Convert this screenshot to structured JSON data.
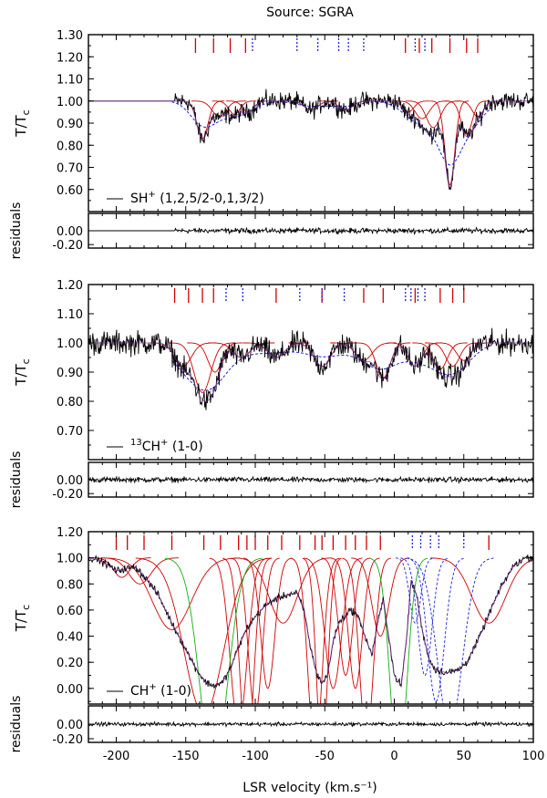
{
  "chart_data": {
    "type": "line",
    "title": "Source: SGRA",
    "xlabel": "LSR velocity (km.s⁻¹)",
    "xlim": [
      -220,
      100
    ],
    "xticks": [
      -200,
      -150,
      -100,
      -50,
      0,
      50,
      100
    ],
    "xtick_labels": [
      "-200",
      "-150",
      "-100",
      "-50",
      "0",
      "50",
      "100"
    ],
    "colors": {
      "data": "#000000",
      "fit": "#d00000",
      "fit_alt": "#2222dd",
      "fit_green": "#10b010"
    },
    "panels": [
      {
        "id": "sh",
        "ylabel": "T/T",
        "ylabel_sub": "c",
        "ylim": [
          0.5,
          1.3
        ],
        "yticks": [
          0.6,
          0.7,
          0.8,
          0.9,
          1.0,
          1.1,
          1.2,
          1.3
        ],
        "ytick_labels": [
          "0.60",
          "0.70",
          "0.80",
          "0.90",
          "1.00",
          "1.10",
          "1.20",
          "1.30"
        ],
        "legend_prefix": "",
        "legend_species": "SH",
        "legend_suffix": " (1,2,5/2-0,1,3/2)",
        "red_markers": [
          -143,
          -130,
          -118,
          -107,
          8,
          18,
          27,
          40,
          52,
          60
        ],
        "blue_markers": [
          -102,
          -70,
          -55,
          -40,
          -33,
          -22,
          15,
          22
        ],
        "components": [
          {
            "v": -138,
            "d": 0.17,
            "w": 4
          },
          {
            "v": -126,
            "d": 0.07,
            "w": 5
          },
          {
            "v": -115,
            "d": 0.06,
            "w": 4
          },
          {
            "v": -105,
            "d": 0.05,
            "w": 4
          },
          {
            "v": -60,
            "d": 0.04,
            "w": 5
          },
          {
            "v": -35,
            "d": 0.04,
            "w": 5
          },
          {
            "v": 10,
            "d": 0.05,
            "w": 4
          },
          {
            "v": 20,
            "d": 0.08,
            "w": 5
          },
          {
            "v": 28,
            "d": 0.12,
            "w": 5
          },
          {
            "v": 40,
            "d": 0.38,
            "w": 3.5
          },
          {
            "v": 52,
            "d": 0.15,
            "w": 4
          },
          {
            "v": 60,
            "d": 0.07,
            "w": 4
          }
        ],
        "data_start": -158,
        "noise": 0.045,
        "residual_ylim": [
          -0.25,
          0.25
        ],
        "residual_yticks": [
          0.0,
          -0.2
        ],
        "residual_ytick_labels": [
          "0.00",
          "-0.20"
        ],
        "residual_label": "residuals"
      },
      {
        "id": "c13h",
        "ylabel": "T/T",
        "ylabel_sub": "c",
        "ylim": [
          0.6,
          1.2
        ],
        "yticks": [
          0.7,
          0.8,
          0.9,
          1.0,
          1.1,
          1.2
        ],
        "ytick_labels": [
          "0.70",
          "0.80",
          "0.90",
          "1.00",
          "1.10",
          "1.20"
        ],
        "legend_prefix": "13",
        "legend_species": "CH",
        "legend_suffix": " (1-0)",
        "red_markers": [
          -158,
          -148,
          -138,
          -130,
          -85,
          -52,
          -22,
          -8,
          15,
          33,
          42,
          50
        ],
        "blue_markers": [
          -121,
          -109,
          -68,
          -52,
          -36,
          8,
          12,
          17,
          22
        ],
        "components": [
          {
            "v": -152,
            "d": 0.08,
            "w": 6
          },
          {
            "v": -138,
            "d": 0.17,
            "w": 6
          },
          {
            "v": -129,
            "d": 0.1,
            "w": 5
          },
          {
            "v": -110,
            "d": 0.05,
            "w": 6
          },
          {
            "v": -85,
            "d": 0.05,
            "w": 6
          },
          {
            "v": -52,
            "d": 0.08,
            "w": 6
          },
          {
            "v": -22,
            "d": 0.06,
            "w": 6
          },
          {
            "v": -8,
            "d": 0.12,
            "w": 5
          },
          {
            "v": 15,
            "d": 0.08,
            "w": 5
          },
          {
            "v": 33,
            "d": 0.09,
            "w": 5
          },
          {
            "v": 42,
            "d": 0.08,
            "w": 5
          },
          {
            "v": 50,
            "d": 0.06,
            "w": 5
          }
        ],
        "data_start": -220,
        "noise": 0.045,
        "residual_ylim": [
          -0.25,
          0.25
        ],
        "residual_yticks": [
          0.0,
          -0.2
        ],
        "residual_ytick_labels": [
          "0.00",
          "-0.20"
        ],
        "residual_label": "residuals"
      },
      {
        "id": "ch",
        "ylabel": "T/T",
        "ylabel_sub": "c",
        "ylim": [
          -0.12,
          1.2
        ],
        "yticks": [
          0.0,
          0.2,
          0.4,
          0.6,
          0.8,
          1.0,
          1.2
        ],
        "ytick_labels": [
          "0.00",
          "0.20",
          "0.40",
          "0.60",
          "0.80",
          "1.00",
          "1.20"
        ],
        "legend_prefix": "",
        "legend_species": "CH",
        "legend_suffix": " (1-0)",
        "red_markers": [
          -200,
          -192,
          -180,
          -160,
          -137,
          -125,
          -112,
          -106,
          -100,
          -91,
          -81,
          -68,
          -57,
          -52,
          -44,
          -35,
          -28,
          -20,
          -10,
          68
        ],
        "blue_markers": [
          13,
          19,
          26,
          32,
          50
        ],
        "profile": [
          [
            -220,
            1.0
          ],
          [
            -212,
            0.98
          ],
          [
            -205,
            0.94
          ],
          [
            -200,
            0.9
          ],
          [
            -192,
            0.92
          ],
          [
            -186,
            0.93
          ],
          [
            -180,
            0.86
          ],
          [
            -170,
            0.72
          ],
          [
            -160,
            0.5
          ],
          [
            -150,
            0.3
          ],
          [
            -142,
            0.14
          ],
          [
            -136,
            0.05
          ],
          [
            -130,
            0.02
          ],
          [
            -124,
            0.04
          ],
          [
            -118,
            0.15
          ],
          [
            -112,
            0.32
          ],
          [
            -106,
            0.46
          ],
          [
            -100,
            0.55
          ],
          [
            -94,
            0.62
          ],
          [
            -88,
            0.67
          ],
          [
            -82,
            0.7
          ],
          [
            -76,
            0.72
          ],
          [
            -70,
            0.73
          ],
          [
            -65,
            0.6
          ],
          [
            -60,
            0.3
          ],
          [
            -56,
            0.12
          ],
          [
            -52,
            0.04
          ],
          [
            -48,
            0.1
          ],
          [
            -44,
            0.36
          ],
          [
            -40,
            0.5
          ],
          [
            -36,
            0.55
          ],
          [
            -32,
            0.6
          ],
          [
            -28,
            0.58
          ],
          [
            -24,
            0.5
          ],
          [
            -20,
            0.36
          ],
          [
            -16,
            0.26
          ],
          [
            -12,
            0.5
          ],
          [
            -8,
            0.68
          ],
          [
            -4,
            0.4
          ],
          [
            0,
            0.1
          ],
          [
            5,
            0.02
          ],
          [
            9,
            0.4
          ],
          [
            12,
            0.82
          ],
          [
            16,
            0.72
          ],
          [
            20,
            0.45
          ],
          [
            25,
            0.22
          ],
          [
            30,
            0.14
          ],
          [
            38,
            0.12
          ],
          [
            46,
            0.14
          ],
          [
            52,
            0.2
          ],
          [
            58,
            0.32
          ],
          [
            64,
            0.46
          ],
          [
            70,
            0.62
          ],
          [
            78,
            0.8
          ],
          [
            86,
            0.94
          ],
          [
            94,
            1.0
          ],
          [
            100,
            1.0
          ]
        ],
        "red_fits": [
          {
            "v": -196,
            "a": 0.15,
            "w": 6
          },
          {
            "v": -183,
            "a": 0.2,
            "w": 8
          },
          {
            "v": -160,
            "a": 0.55,
            "w": 14
          },
          {
            "v": -137,
            "a": 1.2,
            "w": 14
          },
          {
            "v": -112,
            "a": 1.3,
            "w": 6
          },
          {
            "v": -106,
            "a": 1.5,
            "w": 5
          },
          {
            "v": -100,
            "a": 1.2,
            "w": 5
          },
          {
            "v": -91,
            "a": 1.0,
            "w": 5
          },
          {
            "v": -80,
            "a": 0.5,
            "w": 10
          },
          {
            "v": -57,
            "a": 1.5,
            "w": 5
          },
          {
            "v": -52,
            "a": 1.5,
            "w": 4
          },
          {
            "v": -44,
            "a": 1.0,
            "w": 6
          },
          {
            "v": -35,
            "a": 0.9,
            "w": 5
          },
          {
            "v": -28,
            "a": 1.0,
            "w": 5
          },
          {
            "v": -20,
            "a": 1.4,
            "w": 5
          },
          {
            "v": -10,
            "a": 0.6,
            "w": 6
          },
          {
            "v": 68,
            "a": 0.5,
            "w": 12
          }
        ],
        "green_fits": [
          {
            "v": -130,
            "a": 1.6,
            "w": 10
          },
          {
            "v": 3,
            "a": 1.6,
            "w": 6
          }
        ],
        "blue_fits": [
          {
            "v": 15,
            "a": 0.5,
            "w": 4
          },
          {
            "v": 22,
            "a": 0.9,
            "w": 5
          },
          {
            "v": 30,
            "a": 1.1,
            "w": 6
          },
          {
            "v": 40,
            "a": 1.3,
            "w": 9
          }
        ],
        "noise": 0.03,
        "residual_ylim": [
          -0.25,
          0.25
        ],
        "residual_yticks": [
          0.0,
          -0.2
        ],
        "residual_ytick_labels": [
          "0.00",
          "-0.20"
        ],
        "residual_label": "residuals"
      }
    ]
  }
}
